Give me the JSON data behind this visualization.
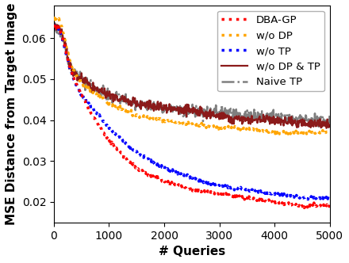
{
  "title": "",
  "xlabel": "# Queries",
  "ylabel": "MSE Distance from Target Image",
  "xlim": [
    0,
    5000
  ],
  "ylim": [
    0.015,
    0.068
  ],
  "series": {
    "DBA-GP": {
      "color": "#ff0000",
      "linestyle": "dotted",
      "linewidth": 2.5
    },
    "w/o DP": {
      "color": "#ffa500",
      "linestyle": "dotted",
      "linewidth": 2.5
    },
    "w/o TP": {
      "color": "#0000ff",
      "linestyle": "dotted",
      "linewidth": 2.5
    },
    "w/o DP & TP": {
      "color": "#8b1a1a",
      "linestyle": "solid",
      "linewidth": 1.6
    },
    "Naive TP": {
      "color": "#7f7f7f",
      "linestyle": "dashdot",
      "linewidth": 1.8
    }
  },
  "legend_fontsize": 9.5,
  "axis_fontsize": 11,
  "tick_fontsize": 10,
  "curve_data": {
    "dba_gp": [
      [
        0,
        0.063
      ],
      [
        100,
        0.063
      ],
      [
        200,
        0.058
      ],
      [
        300,
        0.052
      ],
      [
        400,
        0.049
      ],
      [
        500,
        0.046
      ],
      [
        700,
        0.041
      ],
      [
        1000,
        0.035
      ],
      [
        1500,
        0.028
      ],
      [
        2000,
        0.025
      ],
      [
        2500,
        0.023
      ],
      [
        3000,
        0.022
      ],
      [
        3500,
        0.021
      ],
      [
        4000,
        0.02
      ],
      [
        4500,
        0.019
      ],
      [
        5000,
        0.019
      ]
    ],
    "wo_dp": [
      [
        0,
        0.065
      ],
      [
        100,
        0.065
      ],
      [
        200,
        0.06
      ],
      [
        300,
        0.053
      ],
      [
        400,
        0.051
      ],
      [
        500,
        0.049
      ],
      [
        700,
        0.047
      ],
      [
        1000,
        0.044
      ],
      [
        1500,
        0.041
      ],
      [
        2000,
        0.04
      ],
      [
        2500,
        0.039
      ],
      [
        3000,
        0.038
      ],
      [
        3500,
        0.038
      ],
      [
        4000,
        0.037
      ],
      [
        4500,
        0.037
      ],
      [
        5000,
        0.037
      ]
    ],
    "wo_tp": [
      [
        0,
        0.063
      ],
      [
        100,
        0.063
      ],
      [
        200,
        0.057
      ],
      [
        300,
        0.052
      ],
      [
        400,
        0.049
      ],
      [
        500,
        0.046
      ],
      [
        700,
        0.043
      ],
      [
        1000,
        0.038
      ],
      [
        1500,
        0.032
      ],
      [
        2000,
        0.028
      ],
      [
        2500,
        0.026
      ],
      [
        3000,
        0.024
      ],
      [
        3500,
        0.023
      ],
      [
        4000,
        0.022
      ],
      [
        4500,
        0.021
      ],
      [
        5000,
        0.021
      ]
    ],
    "wo_dp_tp": [
      [
        0,
        0.063
      ],
      [
        100,
        0.063
      ],
      [
        200,
        0.059
      ],
      [
        300,
        0.052
      ],
      [
        400,
        0.051
      ],
      [
        500,
        0.05
      ],
      [
        700,
        0.048
      ],
      [
        1000,
        0.046
      ],
      [
        1500,
        0.044
      ],
      [
        2000,
        0.043
      ],
      [
        2500,
        0.042
      ],
      [
        3000,
        0.041
      ],
      [
        3500,
        0.04
      ],
      [
        4000,
        0.04
      ],
      [
        4500,
        0.039
      ],
      [
        5000,
        0.039
      ]
    ],
    "naive_tp": [
      [
        0,
        0.062
      ],
      [
        100,
        0.062
      ],
      [
        150,
        0.061
      ],
      [
        200,
        0.058
      ],
      [
        250,
        0.054
      ],
      [
        300,
        0.053
      ],
      [
        350,
        0.052
      ],
      [
        400,
        0.051
      ],
      [
        500,
        0.05
      ],
      [
        600,
        0.049
      ],
      [
        700,
        0.048
      ],
      [
        1000,
        0.046
      ],
      [
        1500,
        0.044
      ],
      [
        2000,
        0.043
      ],
      [
        2500,
        0.042
      ],
      [
        3000,
        0.042
      ],
      [
        3500,
        0.041
      ],
      [
        4000,
        0.041
      ],
      [
        4500,
        0.04
      ],
      [
        5000,
        0.04
      ]
    ]
  }
}
